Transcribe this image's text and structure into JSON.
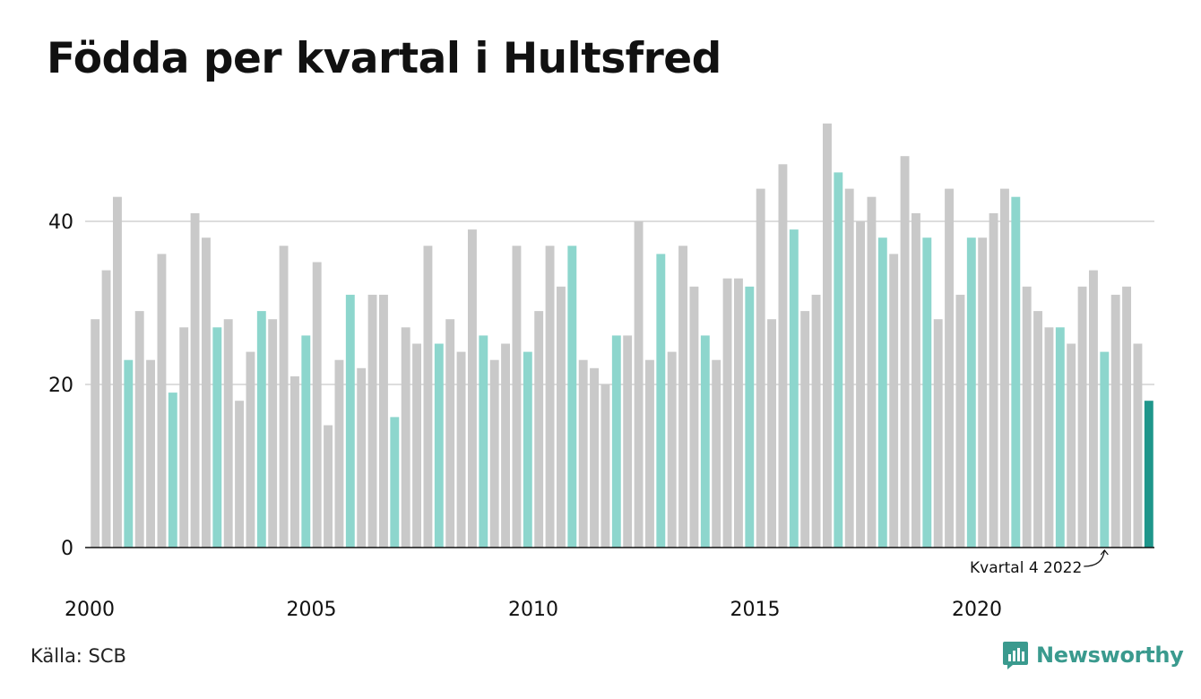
{
  "title": "Födda per kvartal i Hultsfred",
  "source": "Källa: SCB",
  "brand": {
    "name": "Newsworthy",
    "icon": "newsworthy-logo-icon"
  },
  "colors": {
    "default_bar": "#c9c9c9",
    "q4_bar": "#8dd6cd",
    "latest_bar": "#1f968b",
    "gridline": "#dddddd",
    "axis": "#111111",
    "brand": "#3a9a8e"
  },
  "chart_data": {
    "type": "bar",
    "title": "Födda per kvartal i Hultsfred",
    "xlabel": "",
    "ylabel": "",
    "ylim": [
      0,
      52
    ],
    "yticks": [
      0,
      20,
      40
    ],
    "grid": true,
    "x_tick_labels": [
      "2000",
      "2005",
      "2010",
      "2015",
      "2020"
    ],
    "annotation": {
      "text": "Kvartal 4 2022",
      "target": "2022 Q4"
    },
    "highlight_quarter": "Q4",
    "categories": [
      "2000 Q1",
      "2000 Q2",
      "2000 Q3",
      "2000 Q4",
      "2001 Q1",
      "2001 Q2",
      "2001 Q3",
      "2001 Q4",
      "2002 Q1",
      "2002 Q2",
      "2002 Q3",
      "2002 Q4",
      "2003 Q1",
      "2003 Q2",
      "2003 Q3",
      "2003 Q4",
      "2004 Q1",
      "2004 Q2",
      "2004 Q3",
      "2004 Q4",
      "2005 Q1",
      "2005 Q2",
      "2005 Q3",
      "2005 Q4",
      "2006 Q1",
      "2006 Q2",
      "2006 Q3",
      "2006 Q4",
      "2007 Q1",
      "2007 Q2",
      "2007 Q3",
      "2007 Q4",
      "2008 Q1",
      "2008 Q2",
      "2008 Q3",
      "2008 Q4",
      "2009 Q1",
      "2009 Q2",
      "2009 Q3",
      "2009 Q4",
      "2010 Q1",
      "2010 Q2",
      "2010 Q3",
      "2010 Q4",
      "2011 Q1",
      "2011 Q2",
      "2011 Q3",
      "2011 Q4",
      "2012 Q1",
      "2012 Q2",
      "2012 Q3",
      "2012 Q4",
      "2013 Q1",
      "2013 Q2",
      "2013 Q3",
      "2013 Q4",
      "2014 Q1",
      "2014 Q2",
      "2014 Q3",
      "2014 Q4",
      "2015 Q1",
      "2015 Q2",
      "2015 Q3",
      "2015 Q4",
      "2016 Q1",
      "2016 Q2",
      "2016 Q3",
      "2016 Q4",
      "2017 Q1",
      "2017 Q2",
      "2017 Q3",
      "2017 Q4",
      "2018 Q1",
      "2018 Q2",
      "2018 Q3",
      "2018 Q4",
      "2019 Q1",
      "2019 Q2",
      "2019 Q3",
      "2019 Q4",
      "2020 Q1",
      "2020 Q2",
      "2020 Q3",
      "2020 Q4",
      "2021 Q1",
      "2021 Q2",
      "2021 Q3",
      "2021 Q4",
      "2022 Q1",
      "2022 Q2",
      "2022 Q3",
      "2022 Q4",
      "2023 Q1",
      "2023 Q2",
      "2023 Q3",
      "2023 Q4"
    ],
    "values": [
      28,
      34,
      43,
      23,
      29,
      23,
      36,
      19,
      27,
      41,
      38,
      27,
      28,
      18,
      24,
      29,
      28,
      37,
      21,
      26,
      35,
      15,
      23,
      31,
      22,
      31,
      31,
      16,
      27,
      25,
      37,
      25,
      28,
      24,
      39,
      26,
      23,
      25,
      37,
      24,
      29,
      37,
      32,
      37,
      23,
      22,
      20,
      26,
      26,
      40,
      23,
      36,
      24,
      37,
      32,
      26,
      23,
      33,
      33,
      32,
      44,
      28,
      47,
      39,
      29,
      31,
      52,
      46,
      44,
      40,
      43,
      38,
      36,
      48,
      41,
      38,
      28,
      44,
      31,
      38,
      38,
      41,
      44,
      43,
      32,
      29,
      27,
      27,
      25,
      32,
      34,
      24,
      31,
      32,
      25,
      18
    ]
  }
}
